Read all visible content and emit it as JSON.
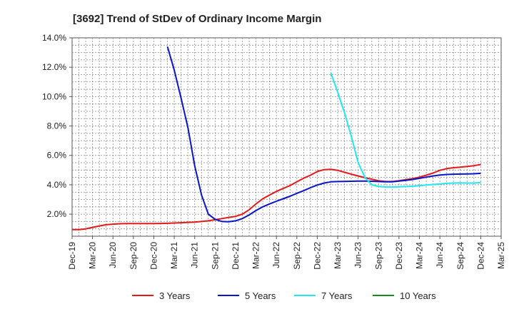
{
  "chart_data": {
    "type": "line",
    "title": "[3692]  Trend of StDev of Ordinary Income Margin",
    "xlabel": "",
    "ylabel": "",
    "x_ticks": [
      "Dec-19",
      "Mar-20",
      "Jun-20",
      "Sep-20",
      "Dec-20",
      "Mar-21",
      "Jun-21",
      "Sep-21",
      "Dec-21",
      "Mar-22",
      "Jun-22",
      "Sep-22",
      "Dec-22",
      "Mar-23",
      "Jun-23",
      "Sep-23",
      "Dec-23",
      "Mar-24",
      "Jun-24",
      "Sep-24",
      "Dec-24",
      "Mar-25"
    ],
    "y_ticks": [
      "2.0%",
      "4.0%",
      "6.0%",
      "8.0%",
      "10.0%",
      "12.0%",
      "14.0%"
    ],
    "y_tick_values": [
      2,
      4,
      6,
      8,
      10,
      12,
      14
    ],
    "ylim": [
      0.5,
      14
    ],
    "grid": true,
    "legend_position": "bottom",
    "series": [
      {
        "name": "3 Years",
        "color": "#e31a1c",
        "points": [
          [
            "Dec-19",
            0.95
          ],
          [
            "Jan-20",
            0.95
          ],
          [
            "Feb-20",
            1.0
          ],
          [
            "Mar-20",
            1.1
          ],
          [
            "Apr-20",
            1.2
          ],
          [
            "May-20",
            1.28
          ],
          [
            "Jun-20",
            1.32
          ],
          [
            "Jul-20",
            1.35
          ],
          [
            "Aug-20",
            1.36
          ],
          [
            "Sep-20",
            1.36
          ],
          [
            "Oct-20",
            1.36
          ],
          [
            "Nov-20",
            1.36
          ],
          [
            "Dec-20",
            1.36
          ],
          [
            "Jan-21",
            1.37
          ],
          [
            "Feb-21",
            1.38
          ],
          [
            "Mar-21",
            1.4
          ],
          [
            "Apr-21",
            1.42
          ],
          [
            "May-21",
            1.44
          ],
          [
            "Jun-21",
            1.46
          ],
          [
            "Jul-21",
            1.5
          ],
          [
            "Aug-21",
            1.55
          ],
          [
            "Sep-21",
            1.62
          ],
          [
            "Oct-21",
            1.7
          ],
          [
            "Nov-21",
            1.78
          ],
          [
            "Dec-21",
            1.85
          ],
          [
            "Jan-22",
            2.0
          ],
          [
            "Feb-22",
            2.3
          ],
          [
            "Mar-22",
            2.7
          ],
          [
            "Apr-22",
            3.05
          ],
          [
            "May-22",
            3.3
          ],
          [
            "Jun-22",
            3.55
          ],
          [
            "Jul-22",
            3.75
          ],
          [
            "Aug-22",
            3.95
          ],
          [
            "Sep-22",
            4.2
          ],
          [
            "Oct-22",
            4.45
          ],
          [
            "Nov-22",
            4.65
          ],
          [
            "Dec-22",
            4.9
          ],
          [
            "Jan-23",
            5.03
          ],
          [
            "Feb-23",
            5.05
          ],
          [
            "Mar-23",
            4.98
          ],
          [
            "Apr-23",
            4.85
          ],
          [
            "May-23",
            4.72
          ],
          [
            "Jun-23",
            4.6
          ],
          [
            "Jul-23",
            4.48
          ],
          [
            "Aug-23",
            4.38
          ],
          [
            "Sep-23",
            4.28
          ],
          [
            "Oct-23",
            4.22
          ],
          [
            "Nov-23",
            4.22
          ],
          [
            "Dec-23",
            4.28
          ],
          [
            "Jan-24",
            4.35
          ],
          [
            "Feb-24",
            4.42
          ],
          [
            "Mar-24",
            4.52
          ],
          [
            "Apr-24",
            4.65
          ],
          [
            "May-24",
            4.8
          ],
          [
            "Jun-24",
            4.98
          ],
          [
            "Jul-24",
            5.1
          ],
          [
            "Aug-24",
            5.16
          ],
          [
            "Sep-24",
            5.2
          ],
          [
            "Oct-24",
            5.25
          ],
          [
            "Nov-24",
            5.3
          ],
          [
            "Dec-24",
            5.38
          ]
        ]
      },
      {
        "name": "5 Years",
        "color": "#0a14c8",
        "points": [
          [
            "Feb-21",
            13.4
          ],
          [
            "Mar-21",
            11.8
          ],
          [
            "Apr-21",
            9.9
          ],
          [
            "May-21",
            7.9
          ],
          [
            "Jun-21",
            5.3
          ],
          [
            "Jul-21",
            3.3
          ],
          [
            "Aug-21",
            2.0
          ],
          [
            "Sep-21",
            1.65
          ],
          [
            "Oct-21",
            1.5
          ],
          [
            "Nov-21",
            1.48
          ],
          [
            "Dec-21",
            1.55
          ],
          [
            "Jan-22",
            1.7
          ],
          [
            "Feb-22",
            1.95
          ],
          [
            "Mar-22",
            2.25
          ],
          [
            "Apr-22",
            2.5
          ],
          [
            "May-22",
            2.7
          ],
          [
            "Jun-22",
            2.88
          ],
          [
            "Jul-22",
            3.05
          ],
          [
            "Aug-22",
            3.22
          ],
          [
            "Sep-22",
            3.42
          ],
          [
            "Oct-22",
            3.6
          ],
          [
            "Nov-22",
            3.8
          ],
          [
            "Dec-22",
            3.98
          ],
          [
            "Jan-23",
            4.12
          ],
          [
            "Feb-23",
            4.2
          ],
          [
            "Mar-23",
            4.22
          ],
          [
            "Apr-23",
            4.23
          ],
          [
            "May-23",
            4.24
          ],
          [
            "Jun-23",
            4.25
          ],
          [
            "Jul-23",
            4.25
          ],
          [
            "Aug-23",
            4.24
          ],
          [
            "Sep-23",
            4.22
          ],
          [
            "Oct-23",
            4.2
          ],
          [
            "Nov-23",
            4.2
          ],
          [
            "Dec-23",
            4.25
          ],
          [
            "Jan-24",
            4.3
          ],
          [
            "Feb-24",
            4.36
          ],
          [
            "Mar-24",
            4.44
          ],
          [
            "Apr-24",
            4.52
          ],
          [
            "May-24",
            4.6
          ],
          [
            "Jun-24",
            4.66
          ],
          [
            "Jul-24",
            4.7
          ],
          [
            "Aug-24",
            4.72
          ],
          [
            "Sep-24",
            4.73
          ],
          [
            "Oct-24",
            4.74
          ],
          [
            "Nov-24",
            4.75
          ],
          [
            "Dec-24",
            4.78
          ]
        ]
      },
      {
        "name": "7 Years",
        "color": "#22e6f0",
        "points": [
          [
            "Feb-23",
            11.6
          ],
          [
            "Mar-23",
            10.3
          ],
          [
            "Apr-23",
            8.9
          ],
          [
            "May-23",
            7.3
          ],
          [
            "Jun-23",
            5.5
          ],
          [
            "Jul-23",
            4.5
          ],
          [
            "Aug-23",
            4.0
          ],
          [
            "Sep-23",
            3.88
          ],
          [
            "Oct-23",
            3.85
          ],
          [
            "Nov-23",
            3.84
          ],
          [
            "Dec-23",
            3.86
          ],
          [
            "Jan-24",
            3.88
          ],
          [
            "Feb-24",
            3.9
          ],
          [
            "Mar-24",
            3.94
          ],
          [
            "Apr-24",
            3.98
          ],
          [
            "May-24",
            4.02
          ],
          [
            "Jun-24",
            4.06
          ],
          [
            "Jul-24",
            4.1
          ],
          [
            "Aug-24",
            4.12
          ],
          [
            "Sep-24",
            4.13
          ],
          [
            "Oct-24",
            4.12
          ],
          [
            "Nov-24",
            4.12
          ],
          [
            "Dec-24",
            4.15
          ]
        ]
      },
      {
        "name": "10 Years",
        "color": "#1a8a1a",
        "points": []
      }
    ]
  }
}
